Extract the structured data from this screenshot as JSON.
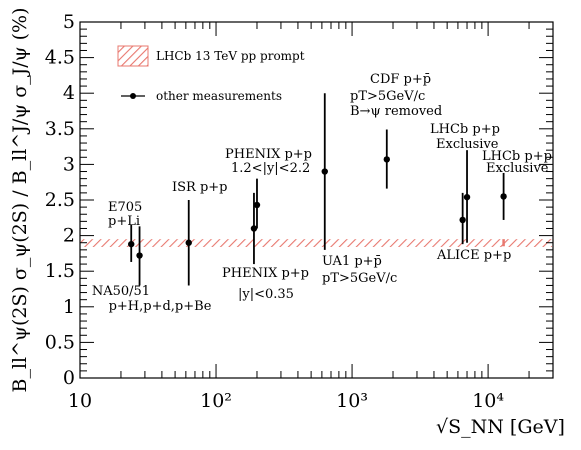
{
  "chart_data": {
    "type": "scatter",
    "x_scale": "log",
    "xlim": [
      10,
      30000
    ],
    "ylim": [
      0,
      5
    ],
    "grid": false,
    "legend_position": "top-left",
    "xlabel": "√S_NN [GeV]",
    "ylabel": "B_ll^ψ(2S) σ_ψ(2S) / B_ll^J/ψ σ_J/ψ (%)",
    "x_ticks": [
      {
        "value": 10,
        "label": "10"
      },
      {
        "value": 100,
        "label": "10²"
      },
      {
        "value": 1000,
        "label": "10³"
      },
      {
        "value": 10000,
        "label": "10⁴"
      }
    ],
    "y_ticks": [
      {
        "value": 0,
        "label": "0"
      },
      {
        "value": 0.5,
        "label": "0.5"
      },
      {
        "value": 1,
        "label": "1"
      },
      {
        "value": 1.5,
        "label": "1.5"
      },
      {
        "value": 2,
        "label": "2"
      },
      {
        "value": 2.5,
        "label": "2.5"
      },
      {
        "value": 3,
        "label": "3"
      },
      {
        "value": 3.5,
        "label": "3.5"
      },
      {
        "value": 4,
        "label": "4"
      },
      {
        "value": 4.5,
        "label": "4.5"
      },
      {
        "value": 5,
        "label": "5"
      }
    ],
    "legend": [
      {
        "label": "LHCb 13 TeV pp prompt",
        "kind": "band",
        "color": "#e8786f"
      },
      {
        "label": "other measurements",
        "kind": "marker",
        "color": "#000000"
      }
    ],
    "band": {
      "series": "LHCb 13 TeV pp prompt",
      "y_low": 1.84,
      "y_high": 1.95,
      "color": "#e8786f",
      "point": {
        "x": 13000,
        "y": 1.9,
        "y_low": 1.85,
        "y_high": 1.95
      }
    },
    "points": [
      {
        "label": "E705 p+Li",
        "x": 23.8,
        "y": 1.88,
        "y_low": 1.63,
        "y_high": 2.15
      },
      {
        "label": "NA50/51 p+H,p+d,p+Be",
        "x": 27.4,
        "y": 1.72,
        "y_low": 1.3,
        "y_high": 2.13
      },
      {
        "label": "ISR p+p",
        "x": 63,
        "y": 1.9,
        "y_low": 1.3,
        "y_high": 2.5
      },
      {
        "label": "PHENIX p+p |y|<0.35",
        "x": 190,
        "y": 2.1,
        "y_low": 1.6,
        "y_high": 2.6
      },
      {
        "label": "PHENIX p+p 1.2<|y|<2.2",
        "x": 200,
        "y": 2.43,
        "y_low": 2.1,
        "y_high": 2.8
      },
      {
        "label": "UA1 p+p̄ pT>5GeV/c",
        "x": 630,
        "y": 2.9,
        "y_low": 1.8,
        "y_high": 4.0
      },
      {
        "label": "CDF p+p̄ pT>5GeV/c B→ψ removed",
        "x": 1800,
        "y": 3.07,
        "y_low": 2.66,
        "y_high": 3.49
      },
      {
        "label": "ALICE p+p",
        "x": 6500,
        "y": 2.22,
        "y_low": 1.88,
        "y_high": 2.6
      },
      {
        "label": "LHCb p+p Exclusive",
        "x": 7000,
        "y": 2.54,
        "y_low": 1.9,
        "y_high": 3.2
      },
      {
        "label": "LHCb p+p Exclusive",
        "x": 13000,
        "y": 2.55,
        "y_low": 2.22,
        "y_high": 2.88
      }
    ],
    "annotations": [
      {
        "lines": [
          "E705",
          "p+Li"
        ]
      },
      {
        "lines": [
          "NA50/51",
          "p+H,p+d,p+Be"
        ]
      },
      {
        "lines": [
          "ISR p+p"
        ]
      },
      {
        "lines": [
          "PHENIX p+p",
          "1.2<|y|<2.2"
        ]
      },
      {
        "lines": [
          "PHENIX p+p",
          "|y|<0.35"
        ]
      },
      {
        "lines": [
          "UA1 p+p̄",
          "pT>5GeV/c"
        ]
      },
      {
        "lines": [
          "CDF p+p̄",
          "pT>5GeV/c",
          "B→ψ removed"
        ]
      },
      {
        "lines": [
          "LHCb p+p",
          "Exclusive"
        ]
      },
      {
        "lines": [
          "LHCb p+p",
          "Exclusive"
        ]
      },
      {
        "lines": [
          "ALICE p+p"
        ]
      }
    ]
  }
}
